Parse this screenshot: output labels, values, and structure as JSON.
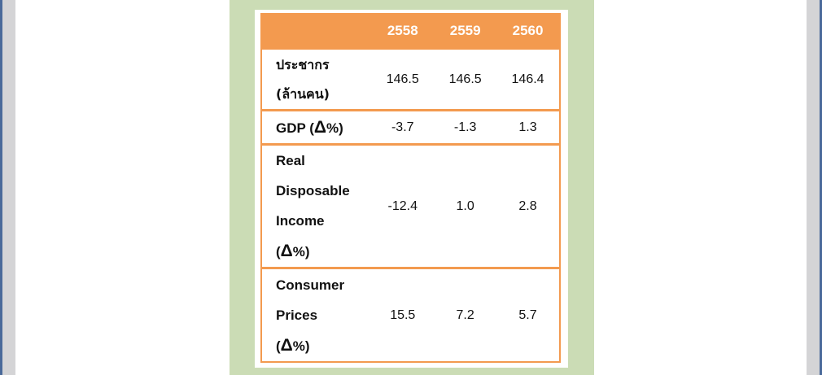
{
  "table": {
    "years": [
      "2558",
      "2559",
      "2560"
    ],
    "rows": [
      {
        "label_lines": [
          "ประชากร",
          "(ล้านคน)"
        ],
        "values": [
          "146.5",
          "146.5",
          "146.4"
        ]
      },
      {
        "label_lines": [
          "GDP (Δ%)"
        ],
        "values": [
          "-3.7",
          "-1.3",
          "1.3"
        ]
      },
      {
        "label_lines": [
          "Real",
          "Disposable",
          "Income",
          "(Δ%)"
        ],
        "values": [
          "-12.4",
          "1.0",
          "2.8"
        ]
      },
      {
        "label_lines": [
          "Consumer",
          "Prices",
          "(Δ%)"
        ],
        "values": [
          "15.5",
          "7.2",
          "5.7"
        ]
      }
    ]
  },
  "colors": {
    "header_bg": "#f39a4f",
    "border": "#f39a4f",
    "figure_bg": "#cbdcb5",
    "page_bg": "#ffffff",
    "window_bg": "#d4d4d6"
  }
}
